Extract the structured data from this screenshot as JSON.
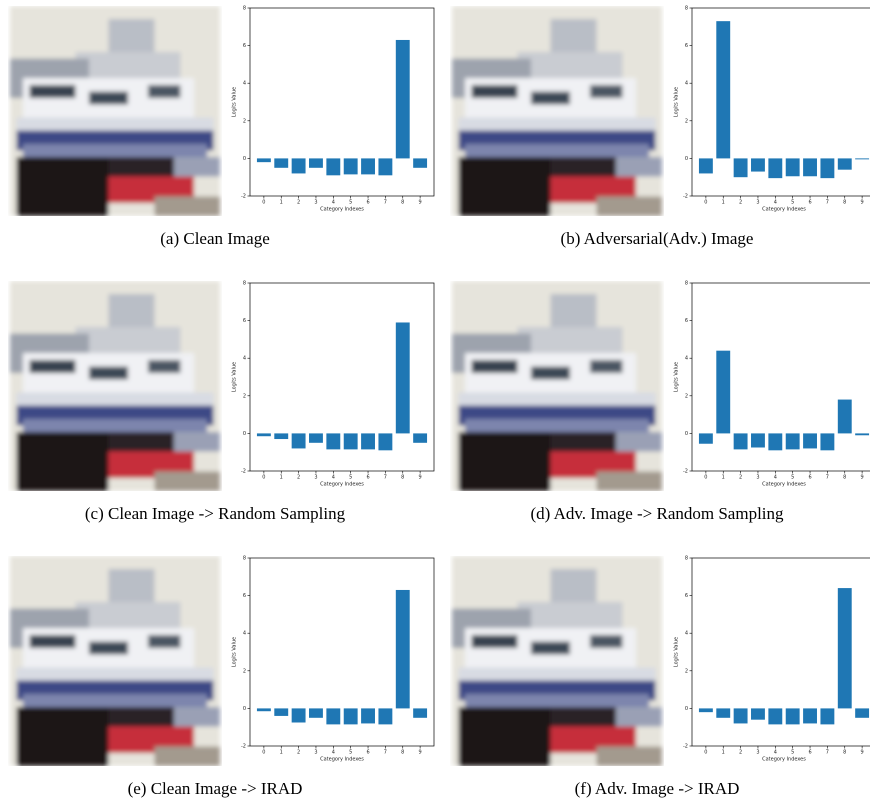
{
  "chart_data": [
    {
      "type": "bar",
      "caption": "(a) Clean Image",
      "xlabel": "Category Indexes",
      "ylabel": "Logits Value",
      "categories": [
        "0",
        "1",
        "2",
        "3",
        "4",
        "5",
        "6",
        "7",
        "8",
        "9"
      ],
      "color": "#1f77b4",
      "values": [
        -0.2,
        -0.5,
        -0.8,
        -0.5,
        -0.9,
        -0.85,
        -0.85,
        -0.9,
        6.3,
        -0.5
      ],
      "ylim": [
        -2,
        8
      ],
      "yticks": [
        -2,
        0,
        2,
        4,
        6,
        8
      ]
    },
    {
      "type": "bar",
      "caption": "(b) Adversarial(Adv.) Image",
      "xlabel": "Category Indexes",
      "ylabel": "Logits Value",
      "categories": [
        "0",
        "1",
        "2",
        "3",
        "4",
        "5",
        "6",
        "7",
        "8",
        "9"
      ],
      "color": "#1f77b4",
      "values": [
        -0.8,
        7.3,
        -1.0,
        -0.7,
        -1.05,
        -0.95,
        -0.95,
        -1.05,
        -0.6,
        -0.05
      ],
      "ylim": [
        -2,
        8
      ],
      "yticks": [
        -2,
        0,
        2,
        4,
        6,
        8
      ]
    },
    {
      "type": "bar",
      "caption": "(c) Clean Image -> Random Sampling",
      "xlabel": "Category Indexes",
      "ylabel": "Logits Value",
      "categories": [
        "0",
        "1",
        "2",
        "3",
        "4",
        "5",
        "6",
        "7",
        "8",
        "9"
      ],
      "color": "#1f77b4",
      "values": [
        -0.15,
        -0.3,
        -0.8,
        -0.5,
        -0.85,
        -0.85,
        -0.85,
        -0.9,
        5.9,
        -0.5
      ],
      "ylim": [
        -2,
        8
      ],
      "yticks": [
        -2,
        0,
        2,
        4,
        6,
        8
      ]
    },
    {
      "type": "bar",
      "caption": "(d) Adv. Image -> Random Sampling",
      "xlabel": "Category Indexes",
      "ylabel": "Logits Value",
      "categories": [
        "0",
        "1",
        "2",
        "3",
        "4",
        "5",
        "6",
        "7",
        "8",
        "9"
      ],
      "color": "#1f77b4",
      "values": [
        -0.55,
        4.4,
        -0.85,
        -0.75,
        -0.9,
        -0.85,
        -0.8,
        -0.9,
        1.8,
        -0.1
      ],
      "ylim": [
        -2,
        8
      ],
      "yticks": [
        -2,
        0,
        2,
        4,
        6,
        8
      ]
    },
    {
      "type": "bar",
      "caption": "(e) Clean Image -> IRAD",
      "xlabel": "Category Indexes",
      "ylabel": "Logits Value",
      "categories": [
        "0",
        "1",
        "2",
        "3",
        "4",
        "5",
        "6",
        "7",
        "8",
        "9"
      ],
      "color": "#1f77b4",
      "values": [
        -0.15,
        -0.4,
        -0.75,
        -0.5,
        -0.85,
        -0.85,
        -0.8,
        -0.85,
        6.3,
        -0.5
      ],
      "ylim": [
        -2,
        8
      ],
      "yticks": [
        -2,
        0,
        2,
        4,
        6,
        8
      ]
    },
    {
      "type": "bar",
      "caption": "(f) Adv. Image -> IRAD",
      "xlabel": "Category Indexes",
      "ylabel": "Logits Value",
      "categories": [
        "0",
        "1",
        "2",
        "3",
        "4",
        "5",
        "6",
        "7",
        "8",
        "9"
      ],
      "color": "#1f77b4",
      "values": [
        -0.2,
        -0.5,
        -0.8,
        -0.6,
        -0.85,
        -0.85,
        -0.8,
        -0.85,
        6.4,
        -0.5
      ],
      "ylim": [
        -2,
        8
      ],
      "yticks": [
        -2,
        0,
        2,
        4,
        6,
        8
      ]
    }
  ]
}
